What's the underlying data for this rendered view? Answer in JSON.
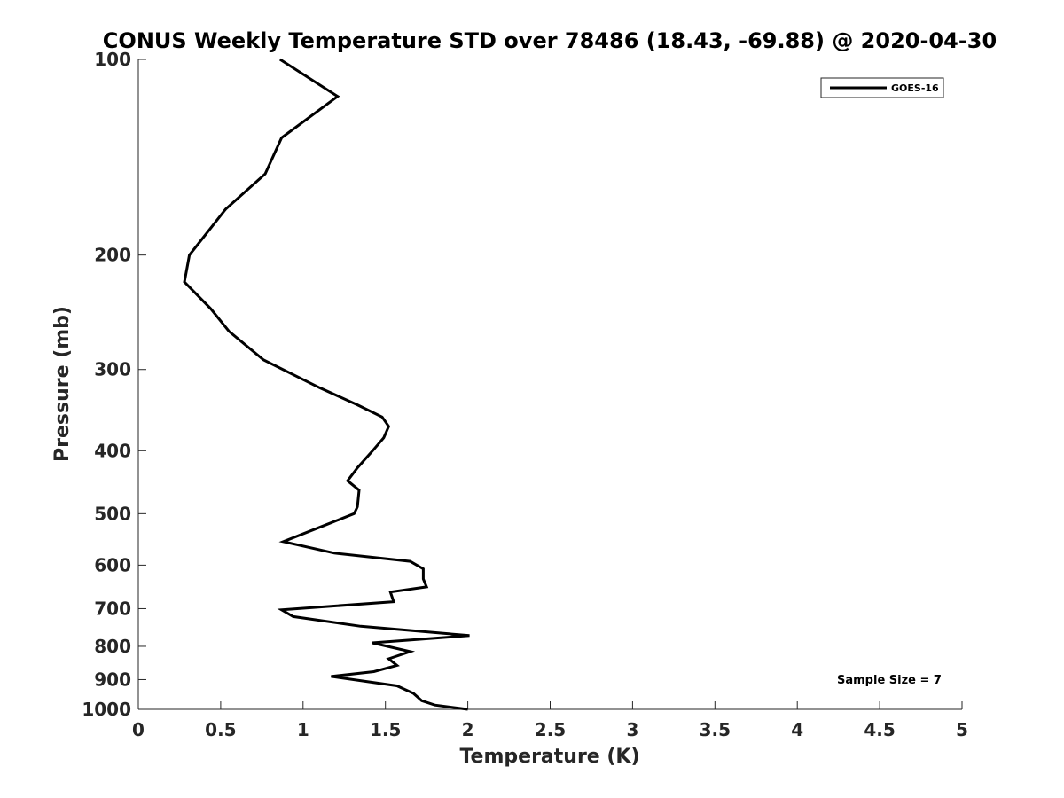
{
  "chart_data": {
    "type": "line",
    "title": "CONUS Weekly Temperature STD over 78486 (18.43, -69.88) @ 2020-04-30",
    "xlabel": "Temperature (K)",
    "ylabel": "Pressure (mb)",
    "xlim": [
      0,
      5
    ],
    "ylim": [
      100,
      1000
    ],
    "y_scale": "log",
    "y_reversed": true,
    "grid": false,
    "legend_position": "top-right",
    "x_ticks": [
      "0",
      "0.5",
      "1",
      "1.5",
      "2",
      "2.5",
      "3",
      "3.5",
      "4",
      "4.5",
      "5"
    ],
    "y_ticks": [
      "100",
      "200",
      "300",
      "400",
      "500",
      "600",
      "700",
      "800",
      "900",
      "1000"
    ],
    "series": [
      {
        "name": "GOES-16",
        "color": "#000000",
        "x": [
          0.86,
          1.21,
          0.87,
          0.77,
          0.53,
          0.31,
          0.28,
          0.44,
          0.55,
          0.76,
          1.1,
          1.33,
          1.48,
          1.52,
          1.49,
          1.43,
          1.33,
          1.27,
          1.34,
          1.33,
          1.31,
          1.14,
          0.88,
          1.19,
          1.65,
          1.73,
          1.73,
          1.75,
          1.53,
          1.55,
          0.87,
          0.94,
          1.35,
          2.01,
          1.42,
          1.65,
          1.52,
          1.57,
          1.43,
          1.17,
          1.57,
          1.67,
          1.72,
          1.8,
          2.0
        ],
        "y": [
          100,
          114,
          132,
          150,
          170,
          200,
          220,
          242,
          262,
          290,
          320,
          340,
          355,
          367,
          382,
          398,
          425,
          445,
          460,
          488,
          500,
          520,
          552,
          575,
          592,
          608,
          630,
          648,
          660,
          683,
          703,
          720,
          745,
          770,
          790,
          815,
          836,
          856,
          875,
          890,
          920,
          945,
          970,
          985,
          1000
        ]
      }
    ],
    "annotations": [
      "Sample Size = 7"
    ]
  }
}
